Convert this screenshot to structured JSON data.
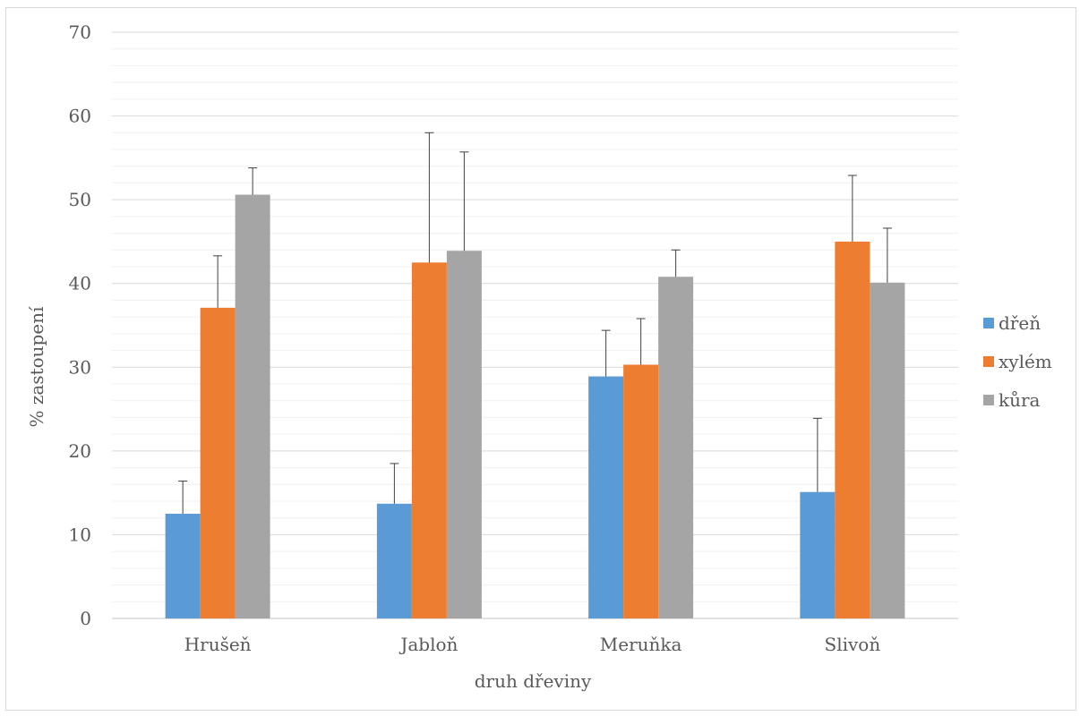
{
  "chart_data": {
    "type": "bar",
    "title": "",
    "xlabel": "druh dřeviny",
    "ylabel": "% zastoupení",
    "ylim": [
      0,
      70
    ],
    "yticks": [
      "0",
      "10",
      "20",
      "30",
      "40",
      "50",
      "60",
      "70"
    ],
    "grid": "major and minor horizontal",
    "legend": "right",
    "categories": [
      "Hrušeň",
      "Jabloň",
      "Meruňka",
      "Slivoň"
    ],
    "series": [
      {
        "name": "dřeň",
        "color": "#5b9bd5",
        "values": [
          12.5,
          13.7,
          28.9,
          15.1
        ],
        "error": [
          3.9,
          4.8,
          5.5,
          8.8
        ]
      },
      {
        "name": "xylém",
        "color": "#ed7d31",
        "values": [
          37.1,
          42.5,
          30.3,
          45.0
        ],
        "error": [
          6.2,
          15.5,
          5.5,
          7.9
        ]
      },
      {
        "name": "kůra",
        "color": "#a5a5a5",
        "values": [
          50.6,
          43.9,
          40.8,
          40.1
        ],
        "error": [
          3.2,
          11.8,
          3.2,
          6.5
        ]
      }
    ]
  }
}
